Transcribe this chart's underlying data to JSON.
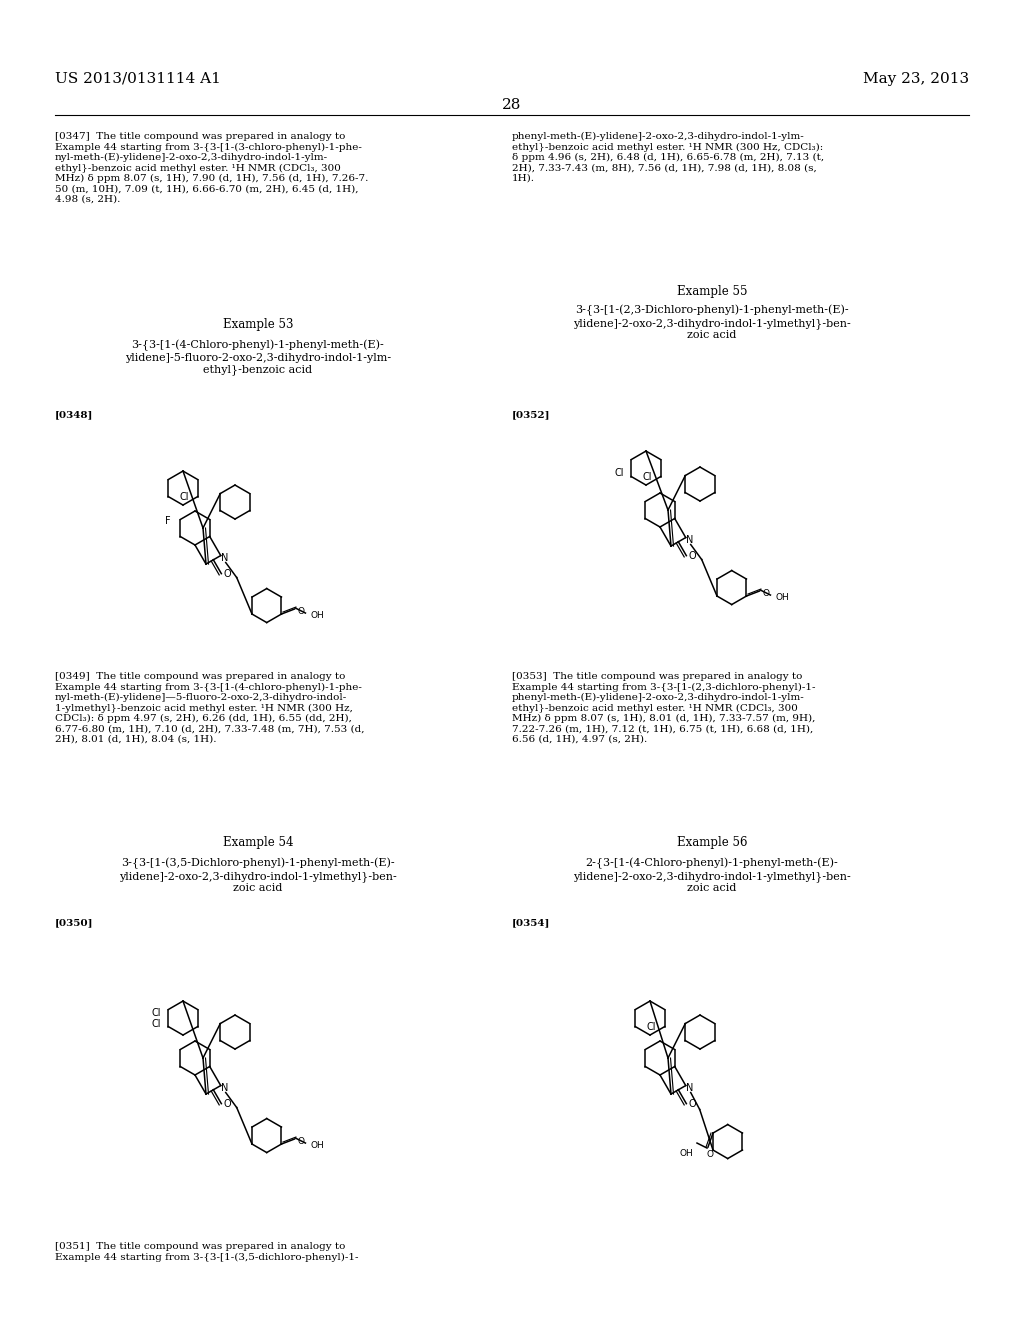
{
  "background_color": "#ffffff",
  "header_left": "US 2013/0131114 A1",
  "header_right": "May 23, 2013",
  "page_number": "28",
  "font_size_header": 11,
  "font_size_body": 7.5,
  "font_size_example": 8.5,
  "font_size_compound": 8.0
}
